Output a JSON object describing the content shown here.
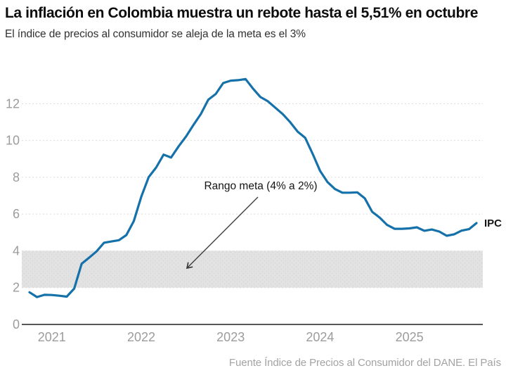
{
  "header": {
    "title": "La inflación en Colombia muestra un rebote hasta el 5,51% en octubre",
    "subtitle": "El índice de precios al consumidor se aleja de la meta es el 3%"
  },
  "chart_data": {
    "type": "line",
    "title": "La inflación en Colombia muestra un rebote hasta el 5,51% en octubre",
    "series_name": "IPC",
    "x_frequency": "monthly",
    "x": [
      "2020-10",
      "2020-11",
      "2020-12",
      "2021-01",
      "2021-02",
      "2021-03",
      "2021-04",
      "2021-05",
      "2021-06",
      "2021-07",
      "2021-08",
      "2021-09",
      "2021-10",
      "2021-11",
      "2021-12",
      "2022-01",
      "2022-02",
      "2022-03",
      "2022-04",
      "2022-05",
      "2022-06",
      "2022-07",
      "2022-08",
      "2022-09",
      "2022-10",
      "2022-11",
      "2022-12",
      "2023-01",
      "2023-02",
      "2023-03",
      "2023-04",
      "2023-05",
      "2023-06",
      "2023-07",
      "2023-08",
      "2023-09",
      "2023-10",
      "2023-11",
      "2023-12",
      "2024-01",
      "2024-02",
      "2024-03",
      "2024-04",
      "2024-05",
      "2024-06",
      "2024-07",
      "2024-08",
      "2024-09",
      "2024-10",
      "2024-11",
      "2024-12",
      "2025-01",
      "2025-02",
      "2025-03",
      "2025-04",
      "2025-05",
      "2025-06",
      "2025-07",
      "2025-08",
      "2025-09",
      "2025-10"
    ],
    "values": [
      1.75,
      1.49,
      1.61,
      1.6,
      1.56,
      1.51,
      1.95,
      3.3,
      3.63,
      3.97,
      4.44,
      4.51,
      4.58,
      4.86,
      5.62,
      6.94,
      8.01,
      8.53,
      9.23,
      9.07,
      9.67,
      10.21,
      10.84,
      11.44,
      12.22,
      12.53,
      13.12,
      13.25,
      13.28,
      13.34,
      12.82,
      12.36,
      12.13,
      11.78,
      11.43,
      10.99,
      10.48,
      10.15,
      9.28,
      8.35,
      7.74,
      7.36,
      7.16,
      7.16,
      7.18,
      6.86,
      6.12,
      5.81,
      5.41,
      5.2,
      5.2,
      5.22,
      5.28,
      5.09,
      5.16,
      5.05,
      4.82,
      4.9,
      5.1,
      5.18,
      5.51
    ],
    "last_value": 5.51,
    "ylim": [
      0,
      13.8
    ],
    "yticks": [
      0,
      2,
      4,
      6,
      8,
      10,
      12
    ],
    "xticks": [
      "2021",
      "2022",
      "2023",
      "2024",
      "2025"
    ],
    "grid": true,
    "band": {
      "from": 2,
      "to": 4,
      "label": "Rango meta (4% a 2%)"
    },
    "end_label": "IPC",
    "colors": {
      "line": "#1571a9",
      "band": "#e2e2e2",
      "band_dots": "#d4d4d4",
      "grid": "#dcdcdc",
      "axis": "#58585a",
      "tick_text": "#9c9c9c",
      "annotation": "#141414"
    }
  },
  "footer": {
    "source": "Fuente Índice de Precios al Consumidor del DANE. El País"
  }
}
